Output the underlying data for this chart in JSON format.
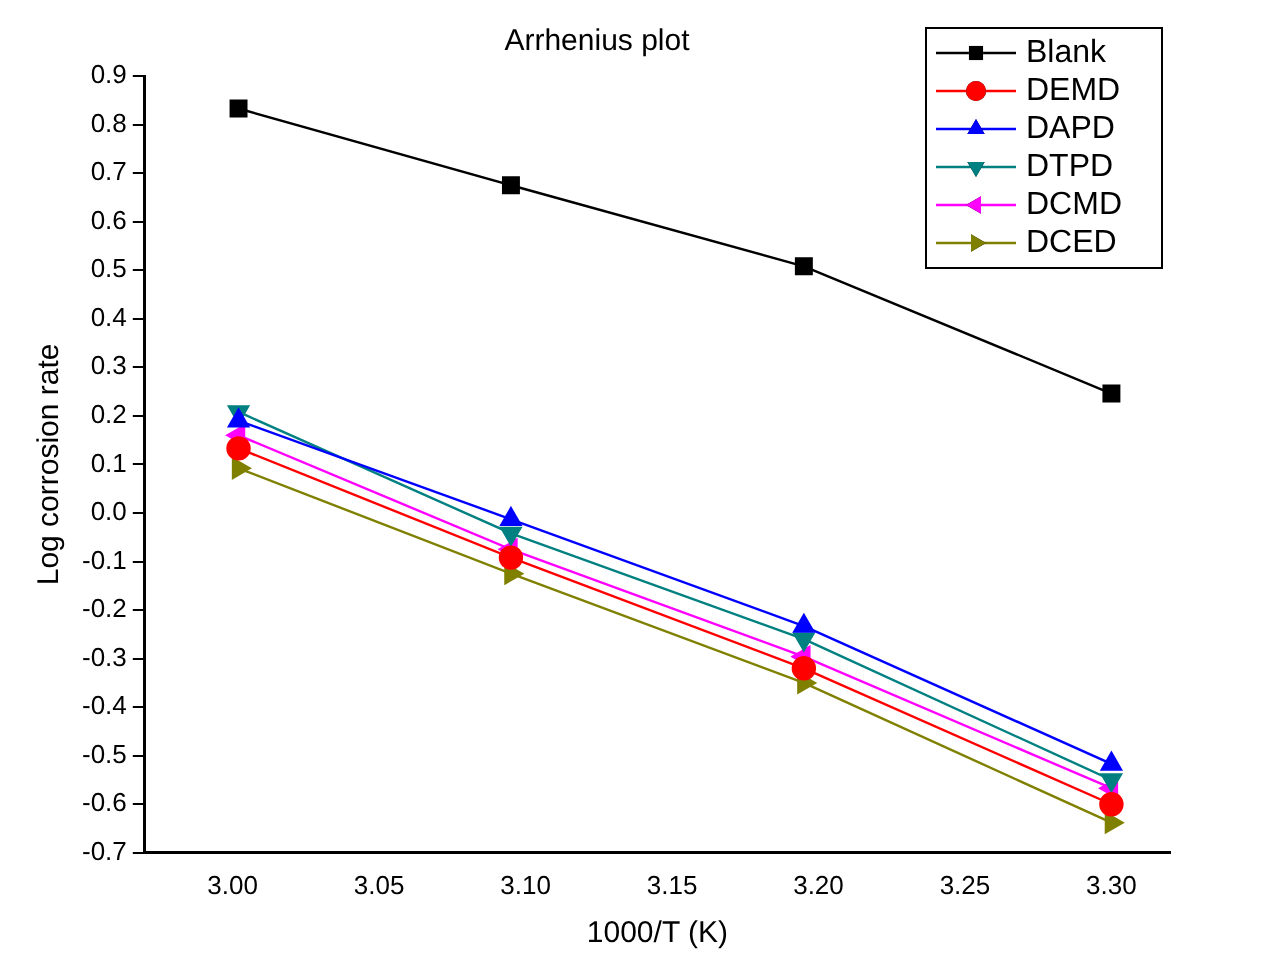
{
  "chart_data": {
    "type": "line",
    "title": "Arrhenius plot",
    "xlabel": "1000/T (K)",
    "ylabel": "Log corrosion rate",
    "x": [
      3.002,
      3.095,
      3.195,
      3.3
    ],
    "xlim": [
      2.97,
      3.32
    ],
    "xticks": [
      {
        "value": 3.0,
        "label": "3.00"
      },
      {
        "value": 3.05,
        "label": "3.05"
      },
      {
        "value": 3.1,
        "label": "3.10"
      },
      {
        "value": 3.15,
        "label": "3.15"
      },
      {
        "value": 3.2,
        "label": "3.20"
      },
      {
        "value": 3.25,
        "label": "3.25"
      },
      {
        "value": 3.3,
        "label": "3.30"
      }
    ],
    "ylim": [
      -0.7,
      0.9
    ],
    "yticks": [
      -0.7,
      -0.6,
      -0.5,
      -0.4,
      -0.3,
      -0.2,
      -0.1,
      {
        "value": 0,
        "label": "0.0"
      },
      0.1,
      0.2,
      0.3,
      0.4,
      0.5,
      0.6,
      0.7,
      0.8,
      0.9
    ],
    "grid": false,
    "legend": "top right",
    "line_style": "solid",
    "series": [
      {
        "name": "Blank",
        "color": "#000000",
        "marker": "square",
        "values": [
          0.833,
          0.675,
          0.508,
          0.246
        ]
      },
      {
        "name": "DEMD",
        "color": "#ff0000",
        "marker": "circle",
        "values": [
          0.133,
          -0.092,
          -0.32,
          -0.6
        ]
      },
      {
        "name": "DAPD",
        "color": "#0000ff",
        "marker": "triangle",
        "values": [
          0.19,
          -0.013,
          -0.233,
          -0.517
        ]
      },
      {
        "name": "DTPD",
        "color": "#008080",
        "marker": "triangle",
        "values": [
          0.208,
          -0.042,
          -0.26,
          -0.55
        ]
      },
      {
        "name": "DCMD",
        "color": "#ff00ff",
        "marker": "triangle",
        "values": [
          0.16,
          -0.075,
          -0.296,
          -0.567
        ]
      },
      {
        "name": "DCED",
        "color": "#808000",
        "marker": "triangle",
        "values": [
          0.092,
          -0.125,
          -0.35,
          -0.638
        ]
      }
    ]
  }
}
